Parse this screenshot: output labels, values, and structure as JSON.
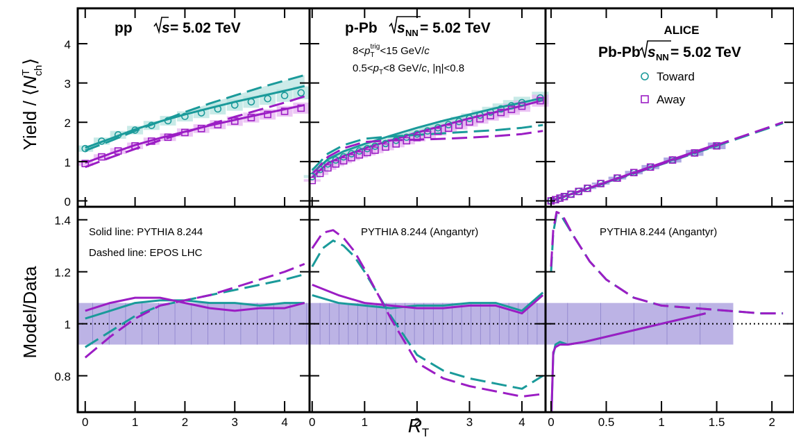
{
  "colors": {
    "toward": "#1a9a9a",
    "away": "#9b1dc4",
    "toward_band": "#b6e3df",
    "away_band": "#e6b3f0",
    "ratio_band": "#b0a6e0",
    "ratio_line": "#8c82cc"
  },
  "axes": {
    "top_ylabel_pre": "Yield / ⟨",
    "top_ylabel_n": "N",
    "top_ylabel_sup": "T",
    "top_ylabel_sub": "ch",
    "top_ylabel_post": "⟩",
    "bottom_ylabel": "Model/Data",
    "xlabel": "R",
    "xlabel_sub": "T",
    "top_yticks": [
      "0",
      "1",
      "2",
      "3",
      "4"
    ],
    "bottom_yticks": [
      "0.8",
      "1",
      "1.2",
      "1.4"
    ],
    "x_ticks_pp": [
      "0",
      "1",
      "2",
      "3",
      "4"
    ],
    "x_ticks_ppb": [
      "0",
      "1",
      "2",
      "3",
      "4"
    ],
    "x_ticks_pbpb": [
      "0",
      "0.5",
      "1",
      "1.5",
      "2"
    ]
  },
  "labels": {
    "pp_system": "pp",
    "s": "s",
    "nn": "NN",
    "energy": " = 5.02 TeV",
    "ppb_system": "p-Pb",
    "pbpb_system": "Pb-Pb",
    "alice": "ALICE",
    "trig_lo": "8<",
    "trig_p": "p",
    "trig_sup": "trig",
    "trig_sub": "T",
    "trig_hi": "<15 GeV/",
    "c": "c",
    "assoc_lo": "0.5<",
    "assoc_p": "p",
    "assoc_sub": "T",
    "assoc_hi": "<8 GeV/",
    "eta": ", |η|<0.8",
    "legend_toward": "Toward",
    "legend_away": "Away",
    "solid_line": "Solid line: PYTHIA 8.244",
    "dashed_line": "Dashed line: EPOS LHC",
    "angantyr_ppb": "PYTHIA 8.244 (Angantyr)",
    "angantyr_pbpb": "PYTHIA 8.244 (Angantyr)"
  },
  "chart_data": [
    {
      "type": "scatter",
      "panel": "pp yield",
      "title": "pp √s = 5.02 TeV",
      "ylabel": "Yield / ⟨N_ch^T⟩",
      "xlim": [
        -0.15,
        4.5
      ],
      "ylim": [
        -0.15,
        4.9
      ],
      "data_toward": {
        "x": [
          0,
          0.33,
          0.66,
          1,
          1.33,
          1.66,
          2,
          2.33,
          2.66,
          3,
          3.33,
          3.66,
          4,
          4.33
        ],
        "y": [
          1.33,
          1.52,
          1.68,
          1.8,
          1.92,
          2.04,
          2.15,
          2.24,
          2.34,
          2.44,
          2.52,
          2.6,
          2.68,
          2.75
        ]
      },
      "data_away": {
        "x": [
          0,
          0.33,
          0.66,
          1,
          1.33,
          1.66,
          2,
          2.33,
          2.66,
          3,
          3.33,
          3.66,
          4,
          4.33
        ],
        "y": [
          0.95,
          1.12,
          1.27,
          1.4,
          1.52,
          1.62,
          1.74,
          1.84,
          1.94,
          2.03,
          2.12,
          2.2,
          2.28,
          2.36
        ]
      },
      "pythia_toward": {
        "x": [
          0,
          0.5,
          1,
          1.5,
          2,
          2.5,
          3,
          3.5,
          4,
          4.4
        ],
        "y": [
          1.35,
          1.58,
          1.82,
          2.02,
          2.2,
          2.36,
          2.52,
          2.66,
          2.8,
          2.92
        ]
      },
      "pythia_away": {
        "x": [
          0,
          0.5,
          1,
          1.5,
          2,
          2.5,
          3,
          3.5,
          4,
          4.4
        ],
        "y": [
          0.97,
          1.2,
          1.42,
          1.6,
          1.76,
          1.92,
          2.06,
          2.2,
          2.33,
          2.44
        ]
      },
      "epos_toward": {
        "x": [
          0,
          0.5,
          1,
          1.5,
          2,
          2.5,
          3,
          3.5,
          4,
          4.4
        ],
        "y": [
          1.28,
          1.52,
          1.78,
          2.02,
          2.26,
          2.48,
          2.68,
          2.88,
          3.06,
          3.2
        ]
      },
      "epos_away": {
        "x": [
          0,
          0.5,
          1,
          1.5,
          2,
          2.5,
          3,
          3.5,
          4,
          4.4
        ],
        "y": [
          0.86,
          1.1,
          1.32,
          1.54,
          1.74,
          1.94,
          2.14,
          2.32,
          2.5,
          2.66
        ]
      }
    },
    {
      "type": "scatter",
      "panel": "p-Pb yield",
      "title": "p-Pb √sNN = 5.02 TeV",
      "xlim": [
        -0.05,
        4.45
      ],
      "ylim": [
        -0.15,
        4.9
      ],
      "data_toward": {
        "x": [
          0,
          0.15,
          0.3,
          0.45,
          0.6,
          0.75,
          0.9,
          1.05,
          1.2,
          1.4,
          1.6,
          1.8,
          2,
          2.2,
          2.4,
          2.6,
          2.8,
          3,
          3.2,
          3.4,
          3.6,
          3.8,
          4.0,
          4.35
        ],
        "y": [
          0.62,
          0.8,
          0.94,
          1.04,
          1.12,
          1.2,
          1.27,
          1.33,
          1.39,
          1.46,
          1.54,
          1.62,
          1.7,
          1.78,
          1.86,
          1.94,
          2.02,
          2.1,
          2.18,
          2.26,
          2.34,
          2.42,
          2.5,
          2.62
        ]
      },
      "data_away": {
        "x": [
          0,
          0.15,
          0.3,
          0.45,
          0.6,
          0.75,
          0.9,
          1.05,
          1.2,
          1.4,
          1.6,
          1.8,
          2,
          2.2,
          2.4,
          2.6,
          2.8,
          3,
          3.2,
          3.4,
          3.6,
          3.8,
          4.0,
          4.35
        ],
        "y": [
          0.52,
          0.7,
          0.84,
          0.94,
          1.02,
          1.1,
          1.17,
          1.23,
          1.29,
          1.37,
          1.45,
          1.53,
          1.61,
          1.69,
          1.77,
          1.85,
          1.93,
          2.01,
          2.09,
          2.17,
          2.25,
          2.33,
          2.41,
          2.55
        ]
      },
      "pythia_toward": {
        "x": [
          0,
          0.3,
          0.6,
          1,
          1.5,
          2,
          2.5,
          3,
          3.5,
          4,
          4.4
        ],
        "y": [
          0.7,
          1.06,
          1.26,
          1.45,
          1.66,
          1.86,
          2.04,
          2.2,
          2.36,
          2.5,
          2.62
        ]
      },
      "pythia_away": {
        "x": [
          0,
          0.3,
          0.6,
          1,
          1.5,
          2,
          2.5,
          3,
          3.5,
          4,
          4.4
        ],
        "y": [
          0.6,
          0.96,
          1.14,
          1.34,
          1.54,
          1.74,
          1.92,
          2.1,
          2.26,
          2.42,
          2.56
        ]
      },
      "epos_toward": {
        "x": [
          0,
          0.3,
          0.6,
          1,
          1.5,
          2,
          2.5,
          3,
          3.5,
          4,
          4.4
        ],
        "y": [
          0.78,
          1.2,
          1.42,
          1.58,
          1.64,
          1.68,
          1.72,
          1.76,
          1.8,
          1.86,
          1.93
        ]
      },
      "epos_away": {
        "x": [
          0,
          0.3,
          0.6,
          1,
          1.5,
          2,
          2.5,
          3,
          3.5,
          4,
          4.4
        ],
        "y": [
          0.68,
          1.12,
          1.34,
          1.5,
          1.54,
          1.56,
          1.58,
          1.61,
          1.65,
          1.7,
          1.78
        ]
      }
    },
    {
      "type": "scatter",
      "panel": "Pb-Pb yield",
      "title": "ALICE Pb-Pb √sNN = 5.02 TeV",
      "legend": [
        "Toward",
        "Away"
      ],
      "xlim": [
        -0.05,
        2.2
      ],
      "ylim": [
        -0.15,
        4.9
      ],
      "data_toward": {
        "x": [
          0,
          0.04,
          0.08,
          0.12,
          0.18,
          0.25,
          0.33,
          0.45,
          0.6,
          0.75,
          0.9,
          1.1,
          1.3,
          1.5
        ],
        "y": [
          0,
          0.03,
          0.07,
          0.11,
          0.17,
          0.24,
          0.32,
          0.44,
          0.58,
          0.72,
          0.86,
          1.04,
          1.22,
          1.4
        ]
      },
      "data_away": {
        "x": [
          0,
          0.04,
          0.08,
          0.12,
          0.18,
          0.25,
          0.33,
          0.45,
          0.6,
          0.75,
          0.9,
          1.1,
          1.3,
          1.5
        ],
        "y": [
          0,
          0.03,
          0.07,
          0.11,
          0.17,
          0.24,
          0.32,
          0.44,
          0.58,
          0.72,
          0.86,
          1.04,
          1.22,
          1.4
        ]
      },
      "pythia_toward": {
        "x": [
          0,
          0.5,
          1,
          1.5
        ],
        "y": [
          0,
          0.47,
          0.95,
          1.42
        ]
      },
      "pythia_away": {
        "x": [
          0,
          0.5,
          1,
          1.5
        ],
        "y": [
          0,
          0.48,
          0.96,
          1.44
        ]
      },
      "epos_toward": {
        "x": [
          0,
          0.5,
          1,
          1.5,
          2,
          2.1
        ],
        "y": [
          0,
          0.46,
          0.93,
          1.4,
          1.88,
          1.98
        ]
      },
      "epos_away": {
        "x": [
          0,
          0.5,
          1,
          1.5,
          2,
          2.1
        ],
        "y": [
          0,
          0.47,
          0.94,
          1.42,
          1.9,
          2.0
        ]
      }
    },
    {
      "type": "line",
      "panel": "pp ratio",
      "ylabel": "Model/Data",
      "xlabel": "R_T",
      "xlim": [
        -0.15,
        4.5
      ],
      "ylim": [
        0.66,
        1.45
      ],
      "pythia_toward": {
        "x": [
          0,
          0.5,
          1,
          1.5,
          2,
          2.5,
          3,
          3.5,
          4,
          4.4
        ],
        "y": [
          1.02,
          1.05,
          1.08,
          1.09,
          1.09,
          1.08,
          1.08,
          1.07,
          1.08,
          1.08
        ]
      },
      "pythia_away": {
        "x": [
          0,
          0.5,
          1,
          1.5,
          2,
          2.5,
          3,
          3.5,
          4,
          4.4
        ],
        "y": [
          1.05,
          1.08,
          1.1,
          1.1,
          1.08,
          1.06,
          1.05,
          1.06,
          1.06,
          1.08
        ]
      },
      "epos_toward": {
        "x": [
          0,
          0.5,
          1,
          1.5,
          2,
          2.5,
          3,
          3.5,
          4,
          4.4
        ],
        "y": [
          0.91,
          0.97,
          1.03,
          1.07,
          1.09,
          1.11,
          1.13,
          1.15,
          1.17,
          1.19
        ]
      },
      "epos_away": {
        "x": [
          0,
          0.5,
          1,
          1.5,
          2,
          2.5,
          3,
          3.5,
          4,
          4.4
        ],
        "y": [
          0.87,
          0.95,
          1.02,
          1.07,
          1.09,
          1.11,
          1.14,
          1.17,
          1.2,
          1.23
        ]
      }
    },
    {
      "type": "line",
      "panel": "p-Pb ratio",
      "xlim": [
        -0.05,
        4.45
      ],
      "ylim": [
        0.66,
        1.45
      ],
      "pythia_toward": {
        "x": [
          0,
          0.5,
          1,
          1.5,
          2,
          2.5,
          3,
          3.5,
          4,
          4.4
        ],
        "y": [
          1.11,
          1.08,
          1.07,
          1.06,
          1.07,
          1.07,
          1.08,
          1.08,
          1.05,
          1.12
        ]
      },
      "pythia_away": {
        "x": [
          0,
          0.5,
          1,
          1.5,
          2,
          2.5,
          3,
          3.5,
          4,
          4.4
        ],
        "y": [
          1.15,
          1.11,
          1.08,
          1.07,
          1.06,
          1.06,
          1.07,
          1.07,
          1.04,
          1.11
        ]
      },
      "epos_toward": {
        "x": [
          0,
          0.2,
          0.4,
          0.6,
          0.8,
          1,
          1.5,
          2,
          2.5,
          3,
          3.5,
          4,
          4.4
        ],
        "y": [
          1.22,
          1.29,
          1.32,
          1.3,
          1.26,
          1.2,
          1.03,
          0.88,
          0.82,
          0.79,
          0.77,
          0.75,
          0.8
        ]
      },
      "epos_away": {
        "x": [
          0,
          0.2,
          0.4,
          0.6,
          0.8,
          1,
          1.5,
          2,
          2.5,
          3,
          3.5,
          4,
          4.4
        ],
        "y": [
          1.29,
          1.35,
          1.36,
          1.33,
          1.28,
          1.21,
          1.02,
          0.85,
          0.79,
          0.76,
          0.74,
          0.72,
          0.73
        ]
      }
    },
    {
      "type": "line",
      "panel": "Pb-Pb ratio",
      "xlim": [
        -0.05,
        2.2
      ],
      "ylim": [
        0.66,
        1.45
      ],
      "pythia_toward": {
        "x": [
          0,
          0.02,
          0.04,
          0.08,
          0.15,
          0.3,
          0.6,
          1,
          1.4
        ],
        "y": [
          0.6,
          0.88,
          0.92,
          0.93,
          0.92,
          0.93,
          0.96,
          1.0,
          1.04
        ]
      },
      "pythia_away": {
        "x": [
          0,
          0.02,
          0.04,
          0.08,
          0.15,
          0.3,
          0.6,
          1,
          1.4
        ],
        "y": [
          0.6,
          0.89,
          0.91,
          0.92,
          0.92,
          0.93,
          0.96,
          1.0,
          1.04
        ]
      },
      "epos_toward": {
        "x": [
          0,
          0.02,
          0.05,
          0.1,
          0.2,
          0.35,
          0.5,
          0.75,
          1,
          1.3,
          1.6,
          1.9,
          2.1
        ],
        "y": [
          1.2,
          1.35,
          1.42,
          1.41,
          1.34,
          1.24,
          1.17,
          1.1,
          1.07,
          1.06,
          1.05,
          1.04,
          1.04
        ]
      },
      "epos_away": {
        "x": [
          0,
          0.02,
          0.05,
          0.1,
          0.2,
          0.35,
          0.5,
          0.75,
          1,
          1.3,
          1.6,
          1.9,
          2.1
        ],
        "y": [
          1.22,
          1.36,
          1.43,
          1.42,
          1.34,
          1.24,
          1.17,
          1.1,
          1.07,
          1.06,
          1.05,
          1.04,
          1.04
        ]
      }
    }
  ]
}
